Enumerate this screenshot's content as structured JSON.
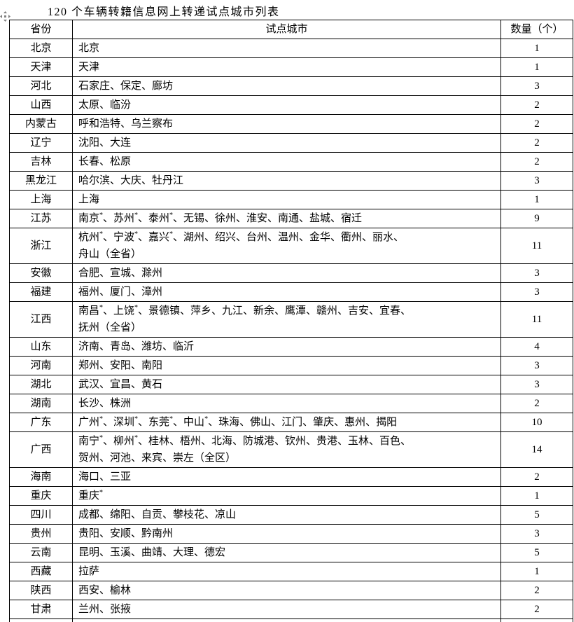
{
  "page": {
    "title": "120 个车辆转籍信息网上转递试点城市列表"
  },
  "icons": {
    "table_move_handle": "move-handle-icon"
  },
  "colors": {
    "text": "#000000",
    "border": "#000000",
    "background": "#ffffff",
    "handle": "#7f7f7f"
  },
  "table": {
    "headers": {
      "province": "省份",
      "cities": "试点城市",
      "count": "数量（个）"
    },
    "rows": [
      {
        "province": "北京",
        "cities_lines": [
          "北京"
        ],
        "count": "1"
      },
      {
        "province": "天津",
        "cities_lines": [
          "天津"
        ],
        "count": "1"
      },
      {
        "province": "河北",
        "cities_lines": [
          "石家庄、保定、廊坊"
        ],
        "count": "3"
      },
      {
        "province": "山西",
        "cities_lines": [
          "太原、临汾"
        ],
        "count": "2"
      },
      {
        "province": "内蒙古",
        "cities_lines": [
          "呼和浩特、乌兰察布"
        ],
        "count": "2"
      },
      {
        "province": "辽宁",
        "cities_lines": [
          "沈阳、大连"
        ],
        "count": "2"
      },
      {
        "province": "吉林",
        "cities_lines": [
          "长春、松原"
        ],
        "count": "2"
      },
      {
        "province": "黑龙江",
        "cities_lines": [
          "哈尔滨、大庆、牡丹江"
        ],
        "count": "3"
      },
      {
        "province": "上海",
        "cities_lines": [
          "上海"
        ],
        "count": "1"
      },
      {
        "province": "江苏",
        "cities_lines": [
          "南京*、苏州*、泰州*、无锡、徐州、淮安、南通、盐城、宿迁"
        ],
        "count": "9"
      },
      {
        "province": "浙江",
        "cities_lines": [
          "杭州*、宁波*、嘉兴*、湖州、绍兴、台州、温州、金华、衢州、丽水、",
          "舟山（全省）"
        ],
        "count": "11"
      },
      {
        "province": "安徽",
        "cities_lines": [
          "合肥、宣城、滁州"
        ],
        "count": "3"
      },
      {
        "province": "福建",
        "cities_lines": [
          "福州、厦门、漳州"
        ],
        "count": "3"
      },
      {
        "province": "江西",
        "cities_lines": [
          "南昌*、上饶*、景德镇、萍乡、九江、新余、鹰潭、赣州、吉安、宜春、",
          "抚州（全省）"
        ],
        "count": "11"
      },
      {
        "province": "山东",
        "cities_lines": [
          "济南、青岛、潍坊、临沂"
        ],
        "count": "4"
      },
      {
        "province": "河南",
        "cities_lines": [
          "郑州、安阳、南阳"
        ],
        "count": "3"
      },
      {
        "province": "湖北",
        "cities_lines": [
          "武汉、宜昌、黄石"
        ],
        "count": "3"
      },
      {
        "province": "湖南",
        "cities_lines": [
          "长沙、株洲"
        ],
        "count": "2"
      },
      {
        "province": "广东",
        "cities_lines": [
          "广州*、深圳*、东莞*、中山*、珠海、佛山、江门、肇庆、惠州、揭阳"
        ],
        "count": "10"
      },
      {
        "province": "广西",
        "cities_lines": [
          "南宁*、柳州*、桂林、梧州、北海、防城港、钦州、贵港、玉林、百色、",
          "贺州、河池、来宾、崇左（全区）"
        ],
        "count": "14"
      },
      {
        "province": "海南",
        "cities_lines": [
          "海口、三亚"
        ],
        "count": "2"
      },
      {
        "province": "重庆",
        "cities_lines": [
          "重庆*"
        ],
        "count": "1"
      },
      {
        "province": "四川",
        "cities_lines": [
          "成都、绵阳、自贡、攀枝花、凉山"
        ],
        "count": "5"
      },
      {
        "province": "贵州",
        "cities_lines": [
          "贵阳、安顺、黔南州"
        ],
        "count": "3"
      },
      {
        "province": "云南",
        "cities_lines": [
          "昆明、玉溪、曲靖、大理、德宏"
        ],
        "count": "5"
      },
      {
        "province": "西藏",
        "cities_lines": [
          "拉萨"
        ],
        "count": "1"
      },
      {
        "province": "陕西",
        "cities_lines": [
          "西安、榆林"
        ],
        "count": "2"
      },
      {
        "province": "甘肃",
        "cities_lines": [
          "兰州、张掖"
        ],
        "count": "2"
      }
    ]
  }
}
